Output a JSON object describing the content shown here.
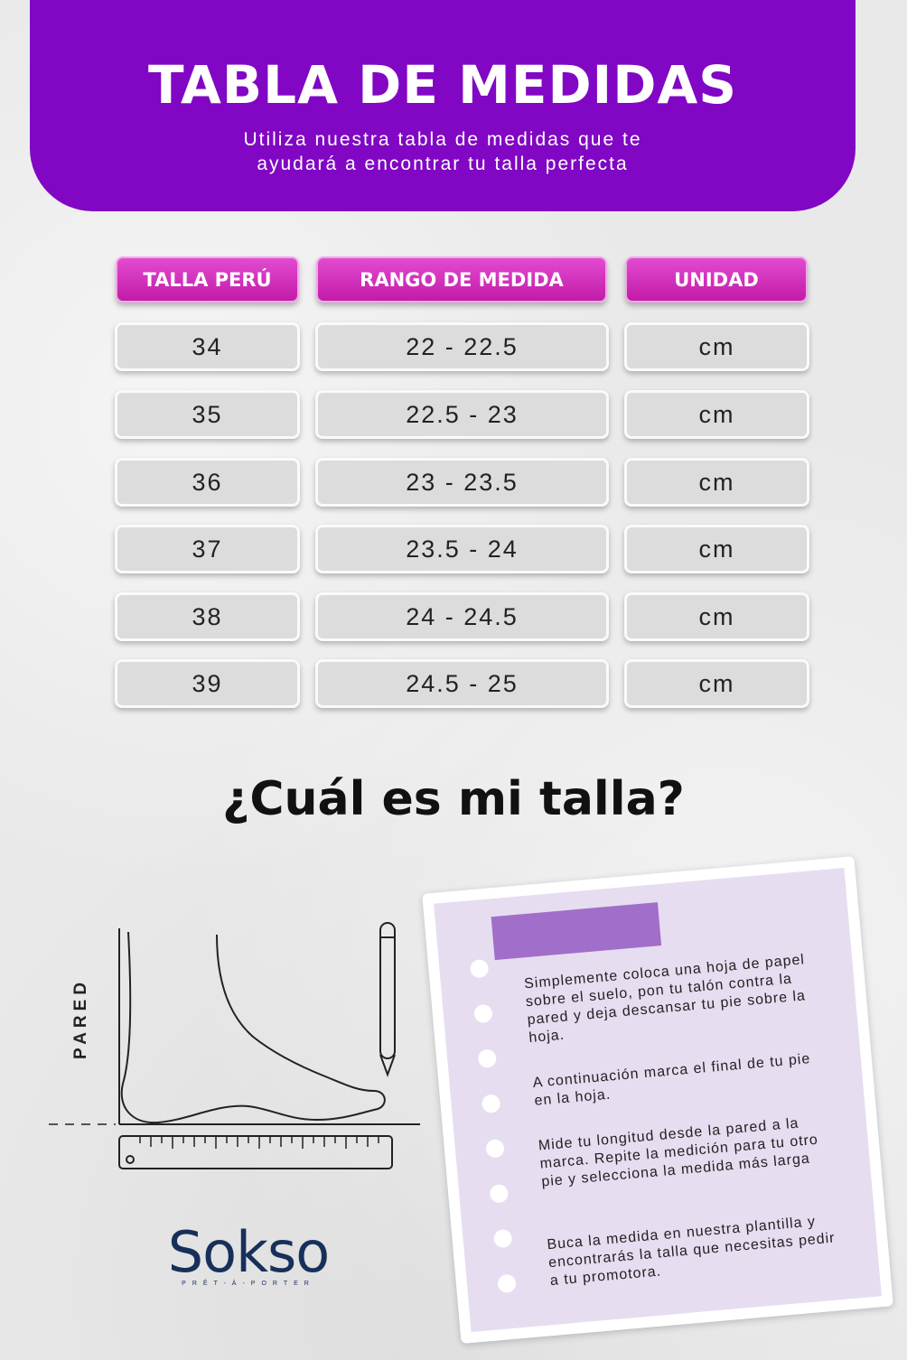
{
  "header": {
    "title": "TABLA DE MEDIDAS",
    "subtitle_line1": "Utiliza nuestra tabla de medidas que te",
    "subtitle_line2": "ayudará a encontrar tu talla perfecta"
  },
  "table": {
    "headers": [
      "TALLA PERÚ",
      "RANGO DE MEDIDA",
      "UNIDAD"
    ],
    "rows": [
      [
        "34",
        "22 - 22.5",
        "cm"
      ],
      [
        "35",
        "22.5 - 23",
        "cm"
      ],
      [
        "36",
        "23 - 23.5",
        "cm"
      ],
      [
        "37",
        "23.5 - 24",
        "cm"
      ],
      [
        "38",
        "24 - 24.5",
        "cm"
      ],
      [
        "39",
        "24.5 - 25",
        "cm"
      ]
    ]
  },
  "question": "¿Cuál es mi talla?",
  "illustration": {
    "wall_label": "PARED"
  },
  "note": {
    "steps": [
      "Simplemente coloca una hoja de papel sobre el suelo, pon tu talón contra la pared y deja descansar tu pie sobre la hoja.",
      "A continuación marca el final de tu pie en la hoja.",
      "Mide tu longitud desde la pared a la marca. Repite la medición para tu otro pie y selecciona la medida más larga",
      "Buca la medida en nuestra plantilla y encontrarás la talla que necesitas pedir a tu promotora."
    ]
  },
  "logo": {
    "name": "Sokso",
    "tagline": "PRÊT-À-PORTER"
  },
  "colors": {
    "header_purple": "#8107c4",
    "header_cell_pink": "#d22fbd",
    "note_lavender": "#e6ddf0",
    "logo_navy": "#17305a"
  }
}
